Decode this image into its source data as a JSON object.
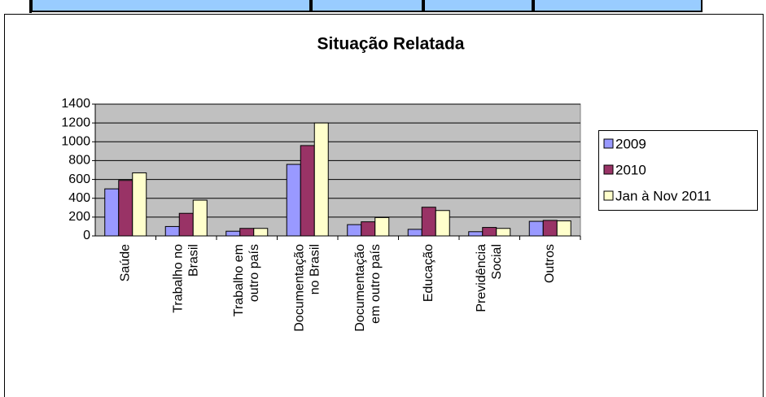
{
  "chart_data": {
    "type": "bar",
    "title": "Situação Relatada",
    "categories": [
      "Saúde",
      "Trabalho no Brasil",
      "Trabalho em outro país",
      "Documentação no Brasil",
      "Documentação em outro país",
      "Educação",
      "Previdência Social",
      "Outros"
    ],
    "series": [
      {
        "name": "2009",
        "color": "#9999ff",
        "values": [
          500,
          100,
          50,
          760,
          120,
          70,
          45,
          155
        ]
      },
      {
        "name": "2010",
        "color": "#993366",
        "values": [
          590,
          240,
          80,
          960,
          150,
          305,
          90,
          165
        ]
      },
      {
        "name": "Jan à Nov 2011",
        "color": "#ffffcc",
        "values": [
          670,
          380,
          80,
          1200,
          195,
          270,
          80,
          160
        ]
      }
    ],
    "ylim": [
      0,
      1400
    ],
    "yticks": [
      0,
      200,
      400,
      600,
      800,
      1000,
      1200,
      1400
    ],
    "grid": true,
    "legend": "right"
  }
}
